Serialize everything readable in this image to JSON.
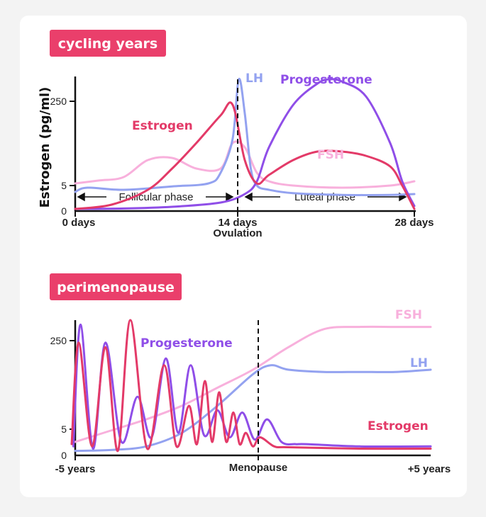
{
  "colors": {
    "badge": "#ea3f6b",
    "estrogen": "#e33a68",
    "progesterone": "#8f4ee8",
    "lh": "#93a2f0",
    "fsh": "#f8b0dc"
  },
  "chart_data": [
    {
      "type": "line",
      "title": "cycling years",
      "ylabel": "Estrogen (pg/ml)",
      "xlabel": "",
      "x_ticks": [
        {
          "label": "0 days",
          "x": 0
        },
        {
          "label": "14 days",
          "x": 14
        },
        {
          "label": "28 days",
          "x": 28
        }
      ],
      "x_annotation": {
        "label": "Ovulation",
        "x": 14
      },
      "y_ticks": [
        "250",
        "5",
        "0"
      ],
      "phases": [
        {
          "label": "Follicular phase",
          "from": 0,
          "to": 14
        },
        {
          "label": "Luteal phase",
          "from": 14,
          "to": 28
        }
      ],
      "series": [
        {
          "name": "Estrogen",
          "key": "estrogen",
          "x": [
            0,
            3,
            6,
            8,
            10,
            12,
            13,
            14,
            15,
            16,
            18,
            20,
            22,
            24,
            26,
            27,
            28
          ],
          "y": [
            5,
            15,
            50,
            100,
            160,
            225,
            250,
            120,
            65,
            85,
            120,
            140,
            140,
            130,
            105,
            60,
            5
          ]
        },
        {
          "name": "Progesterone",
          "key": "progesterone",
          "x": [
            0,
            4,
            8,
            12,
            14,
            15,
            16,
            18,
            20,
            21,
            22,
            24,
            26,
            27,
            28
          ],
          "y": [
            5,
            6,
            10,
            20,
            40,
            70,
            150,
            250,
            300,
            310,
            305,
            270,
            160,
            70,
            12
          ]
        },
        {
          "name": "LH",
          "key": "lh",
          "x": [
            0,
            1,
            4,
            8,
            11,
            12,
            13,
            13.5,
            14,
            14.5,
            15,
            16,
            18,
            22,
            26,
            28
          ],
          "y": [
            45,
            55,
            50,
            58,
            65,
            90,
            170,
            310,
            230,
            100,
            60,
            50,
            42,
            38,
            38,
            40
          ]
        },
        {
          "name": "FSH",
          "key": "fsh",
          "x": [
            0,
            2,
            4,
            6,
            8,
            10,
            12,
            13,
            14,
            15,
            16,
            18,
            22,
            26,
            28
          ],
          "y": [
            65,
            72,
            80,
            120,
            125,
            100,
            100,
            160,
            150,
            90,
            70,
            60,
            55,
            60,
            70
          ]
        }
      ]
    },
    {
      "type": "line",
      "title": "perimenopause",
      "ylabel": "",
      "xlabel": "",
      "x_ticks": [
        {
          "label": "-5 years",
          "x": -5
        },
        {
          "label": "Menopause",
          "x": 0
        },
        {
          "label": "+5 years",
          "x": 5
        }
      ],
      "y_ticks": [
        "250",
        "5",
        "0"
      ],
      "series": [
        {
          "name": "FSH",
          "key": "fsh",
          "x": [
            -5,
            -4,
            -3,
            -2,
            -1,
            0,
            1,
            2,
            3,
            4,
            5
          ],
          "y": [
            30,
            55,
            80,
            110,
            150,
            190,
            240,
            280,
            285,
            285,
            285
          ]
        },
        {
          "name": "LH",
          "key": "lh",
          "x": [
            -5,
            -4,
            -3,
            -2,
            -1,
            0,
            0.5,
            1,
            2,
            3,
            4,
            5
          ],
          "y": [
            10,
            12,
            20,
            50,
            110,
            180,
            200,
            190,
            185,
            185,
            185,
            190
          ]
        },
        {
          "name": "Progesterone",
          "key": "progesterone",
          "peak_x": [
            -4.85,
            -4.15,
            -3.25,
            -2.45,
            -1.75,
            -1.0,
            -0.3,
            0.4,
            1.2
          ],
          "peak_y": [
            290,
            250,
            130,
            215,
            200,
            100,
            95,
            80,
            25
          ],
          "trough_y": [
            15,
            30,
            40,
            50,
            45,
            40,
            35,
            30
          ],
          "tail_x": [
            1.5,
            3,
            5
          ],
          "tail_y": [
            25,
            20,
            20
          ]
        },
        {
          "name": "Estrogen",
          "key": "estrogen",
          "peak_x": [
            -4.9,
            -4.15,
            -3.45,
            -2.5,
            -1.8,
            -1.35,
            -0.95,
            -0.55,
            -0.2,
            0.2
          ],
          "peak_y": [
            250,
            240,
            300,
            200,
            110,
            165,
            140,
            95,
            50,
            40
          ],
          "trough_y": [
            20,
            10,
            15,
            20,
            25,
            30,
            30,
            25,
            20
          ],
          "tail_x": [
            0.6,
            1,
            3,
            5
          ],
          "tail_y": [
            20,
            18,
            15,
            15
          ]
        }
      ]
    }
  ]
}
